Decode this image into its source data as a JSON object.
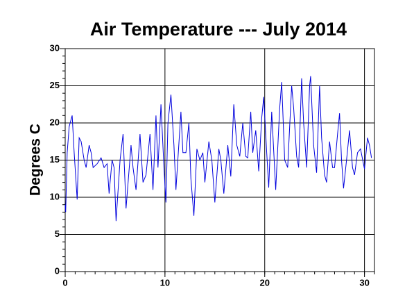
{
  "chart_data": {
    "type": "line",
    "title": "Air Temperature --- July 2014",
    "y_label": "Degrees C",
    "color": "#0000dd",
    "grid": true,
    "xlim": [
      0,
      31
    ],
    "xticks": [
      0,
      10,
      20,
      30
    ],
    "ylim": [
      0,
      30
    ],
    "yticks": [
      0,
      5,
      10,
      15,
      20,
      25,
      30
    ],
    "x": [
      0,
      0.05,
      0.2,
      0.4,
      0.7,
      0.9,
      1.2,
      1.4,
      1.6,
      1.9,
      2.1,
      2.4,
      2.6,
      2.8,
      3.2,
      3.6,
      3.9,
      4.2,
      4.4,
      4.7,
      4.9,
      5.1,
      5.5,
      5.8,
      6.1,
      6.6,
      6.8,
      7.1,
      7.5,
      7.8,
      8.1,
      8.5,
      8.8,
      9.1,
      9.3,
      9.6,
      9.9,
      10.1,
      10.3,
      10.6,
      10.9,
      11.1,
      11.6,
      11.8,
      12.1,
      12.4,
      12.6,
      12.9,
      13.2,
      13.5,
      13.8,
      14.0,
      14.4,
      14.7,
      15.0,
      15.4,
      15.6,
      15.9,
      16.3,
      16.6,
      16.9,
      17.2,
      17.5,
      17.8,
      18.1,
      18.3,
      18.6,
      18.8,
      19.1,
      19.4,
      19.7,
      19.9,
      20.2,
      20.4,
      20.7,
      21.1,
      21.5,
      21.7,
      22.0,
      22.3,
      22.7,
      22.9,
      23.2,
      23.4,
      23.7,
      23.9,
      24.2,
      24.5,
      24.6,
      24.9,
      25.2,
      25.5,
      25.7,
      26.0,
      26.2,
      26.5,
      26.8,
      27.0,
      27.3,
      27.5,
      27.7,
      27.9,
      28.2,
      28.5,
      28.8,
      29.0,
      29.3,
      29.6,
      30.0,
      30.3,
      30.5,
      30.7
    ],
    "values": [
      9,
      8,
      16,
      19.5,
      21,
      16,
      9.7,
      18,
      17.5,
      15,
      14,
      17,
      16,
      14,
      14.5,
      15.3,
      14,
      14.5,
      10.5,
      15,
      14,
      6.8,
      15,
      18.5,
      8.5,
      17,
      14,
      11,
      18.5,
      12,
      13,
      18.5,
      11,
      21,
      14,
      22.5,
      14,
      9.3,
      20,
      23.8,
      17,
      11,
      21.5,
      16,
      16,
      20,
      12.5,
      7.5,
      16.5,
      15,
      16,
      12,
      17.5,
      15,
      9.3,
      16.5,
      15,
      10.5,
      17,
      12.8,
      22.5,
      17,
      15.5,
      20,
      15.5,
      15.3,
      21.5,
      16,
      19,
      13.5,
      20.7,
      23.5,
      16,
      11.3,
      21.5,
      11,
      22,
      25.5,
      15,
      14,
      25,
      22,
      15.5,
      14,
      26,
      20,
      14,
      25,
      26.3,
      17,
      13.3,
      25,
      18,
      13,
      12,
      17.5,
      14,
      14,
      18.5,
      21.3,
      15,
      11.2,
      15,
      19,
      14,
      13,
      16,
      16.5,
      13.8,
      18,
      17,
      15.3
    ]
  }
}
